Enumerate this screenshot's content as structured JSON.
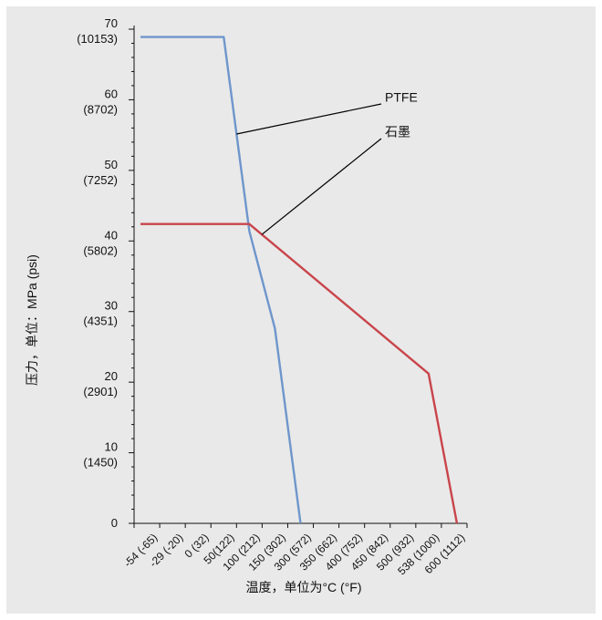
{
  "chart_data": {
    "type": "line",
    "title": "",
    "xlabel": "温度，单位为°C (°F)",
    "ylabel": "压力，单位：MPa (psi)",
    "x_ticks": [
      "-54 (-65)",
      "-29 (-20)",
      "0 (32)",
      "50(122)",
      "100 (212)",
      "150 (302)",
      "300 (572)",
      "350 (662)",
      "400 (752)",
      "450 (842)",
      "500 (932)",
      "538 (1000)",
      "600 (1112)"
    ],
    "y_ticks": [
      {
        "value": 0,
        "line1": "0",
        "line2": ""
      },
      {
        "value": 10,
        "line1": "10",
        "line2": "(1450)"
      },
      {
        "value": 20,
        "line1": "20",
        "line2": "(2901)"
      },
      {
        "value": 30,
        "line1": "30",
        "line2": "(4351)"
      },
      {
        "value": 40,
        "line1": "40",
        "line2": "(5802)"
      },
      {
        "value": 50,
        "line1": "50",
        "line2": "(7252)"
      },
      {
        "value": 60,
        "line1": "60",
        "line2": "(8702)"
      },
      {
        "value": 70,
        "line1": "70",
        "line2": "(10153)"
      }
    ],
    "ylim": [
      0,
      70
    ],
    "grid": false,
    "series": [
      {
        "name": "PTFE",
        "color": "#6f96cc",
        "points": [
          {
            "x": "-54 (-65)",
            "y": 68.9
          },
          {
            "x": "50(122)",
            "y": 68.9
          },
          {
            "x": "100 (212)",
            "y": 41.4
          },
          {
            "x": "150 (302)",
            "y": 27.6
          },
          {
            "x": "300 (572)",
            "y": 0
          }
        ]
      },
      {
        "name": "石墨",
        "color": "#c9454b",
        "points": [
          {
            "x": "-54 (-65)",
            "y": 42.4
          },
          {
            "x": "100 (212)",
            "y": 42.4
          },
          {
            "x": "538 (1000)",
            "y": 21.2
          },
          {
            "x": "600 (1112)",
            "y": 0
          }
        ]
      }
    ],
    "annotations": [
      {
        "label": "PTFE",
        "series": 0
      },
      {
        "label": "石墨",
        "series": 1
      }
    ]
  }
}
